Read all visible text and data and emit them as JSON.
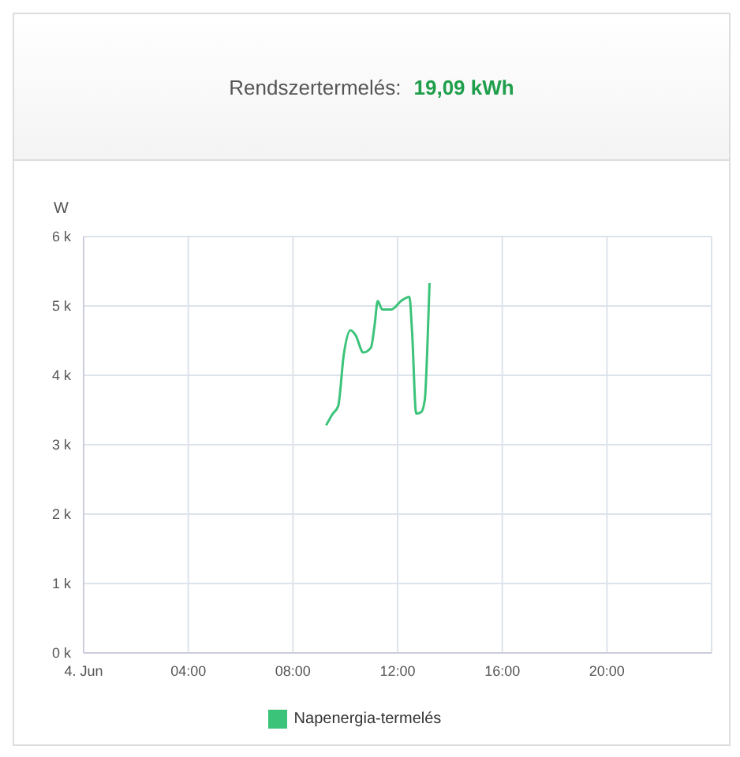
{
  "chart_data": {
    "type": "line",
    "title": "Rendszertermelés:",
    "subtitle": "19,09 kWh",
    "ylabel": "W",
    "x": [
      9.27,
      9.51,
      9.73,
      9.94,
      10.2,
      10.39,
      10.69,
      10.98,
      11.12,
      11.24,
      11.41,
      11.76,
      12.16,
      12.45,
      12.55,
      12.71,
      12.9,
      13.04,
      13.14,
      13.22
    ],
    "series": [
      {
        "name": "Napenergia-termelés",
        "color": "#3cc37a",
        "values": [
          3280,
          3440,
          3560,
          4290,
          4650,
          4580,
          4330,
          4400,
          4720,
          5070,
          4950,
          4950,
          5080,
          5130,
          4650,
          3450,
          3470,
          3650,
          4440,
          5330
        ]
      }
    ],
    "xlim": [
      0,
      24
    ],
    "xticks": [
      {
        "value": 0,
        "label": "4. Jun"
      },
      {
        "value": 4,
        "label": "04:00"
      },
      {
        "value": 8,
        "label": "08:00"
      },
      {
        "value": 12,
        "label": "12:00"
      },
      {
        "value": 16,
        "label": "16:00"
      },
      {
        "value": 20,
        "label": "20:00"
      }
    ],
    "ylim": [
      0,
      6000
    ],
    "yticks": [
      {
        "value": 0,
        "label": "0 k"
      },
      {
        "value": 1000,
        "label": "1 k"
      },
      {
        "value": 2000,
        "label": "2 k"
      },
      {
        "value": 3000,
        "label": "3 k"
      },
      {
        "value": 4000,
        "label": "4 k"
      },
      {
        "value": 5000,
        "label": "5 k"
      },
      {
        "value": 6000,
        "label": "6 k"
      }
    ],
    "grid": true,
    "legend": "bottom",
    "marker": "none",
    "line_style": "solid"
  }
}
